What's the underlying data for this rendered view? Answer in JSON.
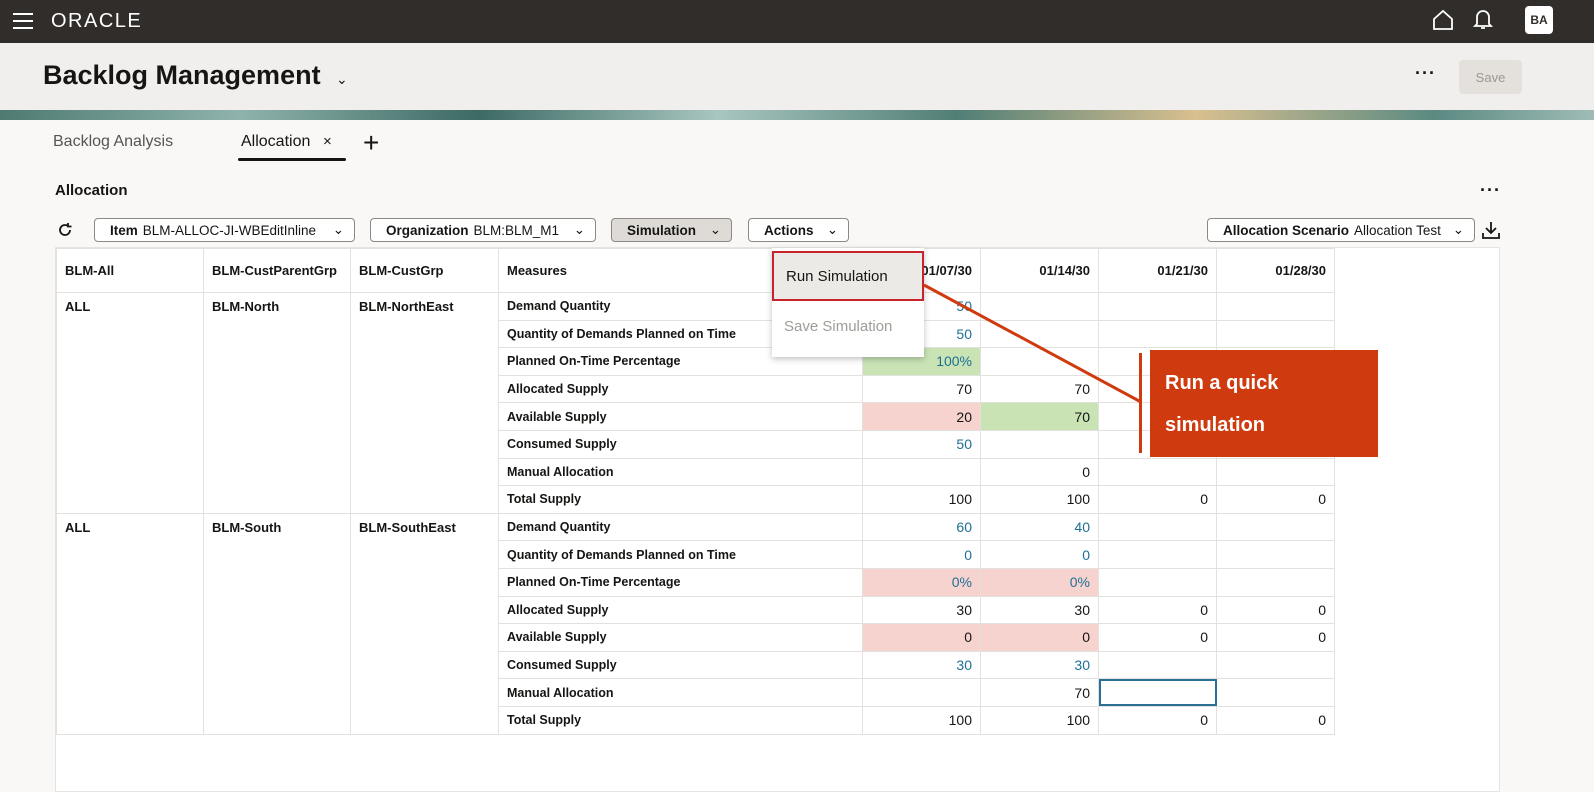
{
  "topbar": {
    "logo": "ORACLE",
    "avatar": "BA",
    "icons": [
      "menu-icon",
      "home-icon",
      "bell-icon"
    ]
  },
  "header": {
    "title": "Backlog Management",
    "more": "···",
    "save": "Save"
  },
  "tabs": [
    {
      "label": "Backlog Analysis",
      "active": false
    },
    {
      "label": "Allocation",
      "active": true,
      "close": "×"
    }
  ],
  "add_tab": "+",
  "section": {
    "title": "Allocation",
    "more": "···"
  },
  "toolbar": {
    "item_label": "Item",
    "item_value": "BLM-ALLOC-JI-WBEditInline",
    "org_label": "Organization",
    "org_value": "BLM:BLM_M1",
    "simulation": "Simulation",
    "actions": "Actions",
    "scenario_label": "Allocation Scenario",
    "scenario_value": "Allocation Test"
  },
  "simulation_menu": {
    "run": "Run Simulation",
    "save": "Save Simulation"
  },
  "callout": {
    "text": "Run a quick simulation",
    "color": "#d03a0f"
  },
  "colors": {
    "value_link": "#1f6f95",
    "good": "#c9e3b5",
    "bad": "#f7d3d0",
    "topbar": "#312d2a"
  },
  "table": {
    "headers": [
      "BLM-All",
      "BLM-CustParentGrp",
      "BLM-CustGrp",
      "Measures",
      "01/07/30",
      "01/14/30",
      "01/21/30",
      "01/28/30"
    ],
    "groups": [
      {
        "all": "ALL",
        "parent": "BLM-North",
        "grp": "BLM-NorthEast",
        "rows": [
          {
            "measure": "Demand Quantity",
            "values": [
              "50",
              "",
              "",
              ""
            ],
            "style": [
              "blue",
              "",
              "",
              ""
            ]
          },
          {
            "measure": "Quantity of Demands Planned on Time",
            "values": [
              "50",
              "",
              "",
              ""
            ],
            "style": [
              "blue",
              "",
              "",
              ""
            ]
          },
          {
            "measure": "Planned On-Time Percentage",
            "values": [
              "100%",
              "",
              "",
              ""
            ],
            "style": [
              "blue green",
              "",
              "",
              ""
            ]
          },
          {
            "measure": "Allocated Supply",
            "values": [
              "70",
              "70",
              "",
              ""
            ],
            "style": [
              "",
              "",
              "",
              ""
            ]
          },
          {
            "measure": "Available Supply",
            "values": [
              "20",
              "70",
              "",
              ""
            ],
            "style": [
              "red",
              "green",
              "",
              ""
            ]
          },
          {
            "measure": "Consumed Supply",
            "values": [
              "50",
              "",
              "",
              ""
            ],
            "style": [
              "blue",
              "",
              "",
              ""
            ]
          },
          {
            "measure": "Manual Allocation",
            "values": [
              "",
              "0",
              "",
              ""
            ],
            "style": [
              "",
              "",
              "",
              ""
            ]
          },
          {
            "measure": "Total Supply",
            "values": [
              "100",
              "100",
              "0",
              "0"
            ],
            "style": [
              "",
              "",
              "",
              ""
            ]
          }
        ]
      },
      {
        "all": "ALL",
        "parent": "BLM-South",
        "grp": "BLM-SouthEast",
        "rows": [
          {
            "measure": "Demand Quantity",
            "values": [
              "60",
              "40",
              "",
              ""
            ],
            "style": [
              "blue",
              "blue",
              "",
              ""
            ]
          },
          {
            "measure": "Quantity of Demands Planned on Time",
            "values": [
              "0",
              "0",
              "",
              ""
            ],
            "style": [
              "blue",
              "blue",
              "",
              ""
            ]
          },
          {
            "measure": "Planned On-Time Percentage",
            "values": [
              "0%",
              "0%",
              "",
              ""
            ],
            "style": [
              "blue red",
              "blue red",
              "",
              ""
            ]
          },
          {
            "measure": "Allocated Supply",
            "values": [
              "30",
              "30",
              "0",
              "0"
            ],
            "style": [
              "",
              "",
              "",
              ""
            ]
          },
          {
            "measure": "Available Supply",
            "values": [
              "0",
              "0",
              "0",
              "0"
            ],
            "style": [
              "red",
              "red",
              "",
              ""
            ]
          },
          {
            "measure": "Consumed Supply",
            "values": [
              "30",
              "30",
              "",
              ""
            ],
            "style": [
              "blue",
              "blue",
              "",
              ""
            ]
          },
          {
            "measure": "Manual Allocation",
            "values": [
              "",
              "70",
              "",
              ""
            ],
            "style": [
              "",
              "",
              "sel",
              ""
            ]
          },
          {
            "measure": "Total Supply",
            "values": [
              "100",
              "100",
              "0",
              "0"
            ],
            "style": [
              "",
              "",
              "",
              ""
            ]
          }
        ]
      }
    ]
  }
}
